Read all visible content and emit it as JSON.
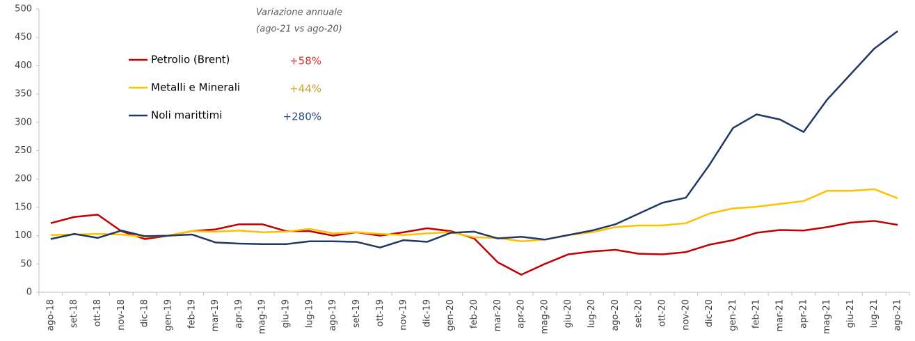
{
  "chart_data": {
    "type": "line",
    "annotation": [
      "Variazione annuale",
      "(ago-21 vs ago-20)"
    ],
    "categories": [
      "ago-18",
      "set-18",
      "ott-18",
      "nov-18",
      "dic-18",
      "gen-19",
      "feb-19",
      "mar-19",
      "apr-19",
      "mag-19",
      "giu-19",
      "lug-19",
      "ago-19",
      "set-19",
      "ott-19",
      "nov-19",
      "dic-19",
      "gen-20",
      "feb-20",
      "mar-20",
      "apr-20",
      "mag-20",
      "giu-20",
      "lug-20",
      "ago-20",
      "set-20",
      "ott-20",
      "nov-20",
      "dic-20",
      "gen-21",
      "feb-21",
      "mar-21",
      "apr-21",
      "mag-21",
      "giu-21",
      "lug-21",
      "ago-21"
    ],
    "series": [
      {
        "name": "Petrolio (Brent)",
        "change": "+58%",
        "color": "#c00000",
        "change_color": "#e03030",
        "values": [
          122,
          133,
          137,
          108,
          94,
          100,
          108,
          111,
          120,
          120,
          108,
          108,
          100,
          106,
          100,
          106,
          113,
          108,
          95,
          53,
          31,
          50,
          67,
          72,
          75,
          68,
          67,
          71,
          84,
          92,
          105,
          110,
          109,
          115,
          123,
          126,
          119
        ]
      },
      {
        "name": "Metalli e Minerali",
        "change": "+44%",
        "color": "#ffc000",
        "change_color": "#c9a227",
        "values": [
          101,
          102,
          103,
          102,
          98,
          100,
          108,
          107,
          109,
          106,
          107,
          112,
          104,
          106,
          103,
          101,
          104,
          106,
          97,
          96,
          90,
          93,
          101,
          106,
          115,
          118,
          118,
          122,
          139,
          148,
          151,
          156,
          161,
          179,
          179,
          182,
          166
        ]
      },
      {
        "name": "Noli marittimi",
        "change": "+280%",
        "color": "#1f3864",
        "change_color": "#2f4a8a",
        "values": [
          94,
          103,
          96,
          109,
          99,
          100,
          102,
          88,
          86,
          85,
          85,
          90,
          90,
          89,
          79,
          92,
          89,
          105,
          107,
          95,
          98,
          93,
          101,
          109,
          120,
          139,
          158,
          167,
          225,
          290,
          314,
          305,
          283,
          340,
          385,
          430,
          461
        ]
      }
    ],
    "ylim": [
      0,
      500
    ],
    "yticks": [
      0,
      50,
      100,
      150,
      200,
      250,
      300,
      350,
      400,
      450,
      500
    ]
  }
}
